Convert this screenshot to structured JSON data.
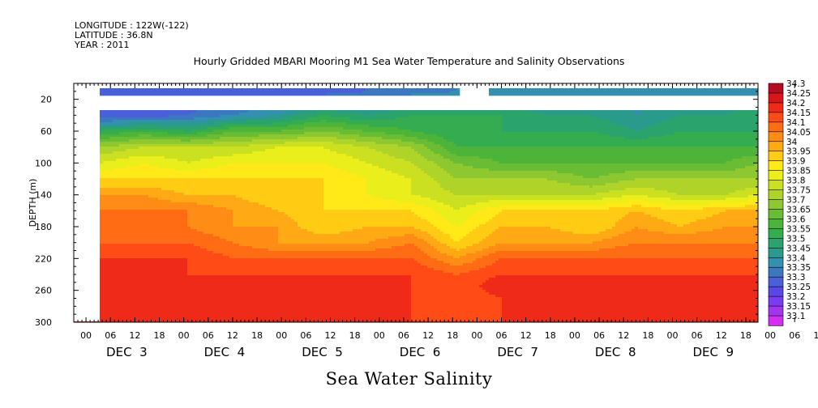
{
  "header": {
    "longitude": "LONGITUDE : 122W(-122)",
    "latitude": "LATITUDE : 36.8N",
    "year": "YEAR : 2011"
  },
  "title": "Hourly Gridded MBARI Mooring M1 Sea Water Temperature and Salinity Observations",
  "variable_name": "Sea Water Salinity",
  "chart_data": {
    "type": "heatmap",
    "title": "Hourly Gridded MBARI Mooring M1 Sea Water Temperature and Salinity Observations",
    "xlabel": "",
    "ylabel": "DEPTH (m)",
    "colorbar_label": "Sea Water Salinity",
    "y_axis": {
      "range": [
        300,
        0
      ],
      "inverted": true,
      "ticks": [
        20,
        60,
        100,
        140,
        180,
        220,
        260,
        300
      ]
    },
    "x_axis": {
      "start": "2011-12-02T21:00",
      "end": "2011-12-09T21:00",
      "hour_ticks": [
        "00",
        "06",
        "12",
        "18",
        "00",
        "06",
        "12",
        "18",
        "00",
        "06",
        "12",
        "18",
        "00",
        "06",
        "12",
        "18",
        "00",
        "06",
        "12",
        "18",
        "00",
        "06",
        "12",
        "18",
        "00",
        "06",
        "12",
        "18",
        "00",
        "06",
        "12",
        "18"
      ],
      "day_labels": [
        "DEC  3",
        "DEC  4",
        "DEC  5",
        "DEC  6",
        "DEC  7",
        "DEC  8",
        "DEC  9"
      ]
    },
    "colorbar": {
      "levels": [
        33.1,
        33.15,
        33.2,
        33.25,
        33.3,
        33.35,
        33.4,
        33.45,
        33.5,
        33.55,
        33.6,
        33.65,
        33.7,
        33.75,
        33.8,
        33.85,
        33.9,
        33.95,
        34,
        34.05,
        34.1,
        34.15,
        34.2,
        34.25,
        34.3
      ],
      "colors": [
        "#d22ff0",
        "#a236f0",
        "#7a3cf0",
        "#5848e8",
        "#4a60d8",
        "#3c78c0",
        "#3490b0",
        "#2a9a8c",
        "#2aa46c",
        "#36ac50",
        "#4cb438",
        "#6abc34",
        "#8ec830",
        "#aed42a",
        "#cce022",
        "#eaee1a",
        "#ffea18",
        "#ffcc14",
        "#ffaa14",
        "#ff8c14",
        "#ff6c14",
        "#ff4c16",
        "#f02a18",
        "#d8141c",
        "#b40c20"
      ]
    },
    "series": [
      {
        "depth": 10,
        "values": [
          33.3,
          33.3,
          33.3,
          33.3,
          33.3,
          33.32,
          33.35,
          33.38,
          33.4,
          33.4,
          33.4,
          33.42,
          33.42,
          33.42,
          33.42,
          33.42
        ]
      },
      {
        "depth": 40,
        "values": [
          33.3,
          33.32,
          33.35,
          33.4,
          33.45,
          33.55,
          33.5,
          33.55,
          33.55,
          33.55,
          33.5,
          33.5,
          33.45,
          33.5,
          33.5,
          33.55
        ]
      },
      {
        "depth": 60,
        "values": [
          33.55,
          33.6,
          33.55,
          33.65,
          33.65,
          33.7,
          33.65,
          33.6,
          33.55,
          33.55,
          33.55,
          33.55,
          33.5,
          33.55,
          33.55,
          33.55
        ]
      },
      {
        "depth": 80,
        "values": [
          33.75,
          33.8,
          33.8,
          33.8,
          33.85,
          33.85,
          33.8,
          33.75,
          33.6,
          33.6,
          33.6,
          33.6,
          33.6,
          33.6,
          33.6,
          33.6
        ]
      },
      {
        "depth": 100,
        "values": [
          33.85,
          33.9,
          33.85,
          33.9,
          33.9,
          33.9,
          33.85,
          33.8,
          33.7,
          33.65,
          33.65,
          33.65,
          33.65,
          33.65,
          33.65,
          33.7
        ]
      },
      {
        "depth": 120,
        "values": [
          33.95,
          33.95,
          33.95,
          33.95,
          33.95,
          33.95,
          33.9,
          33.85,
          33.75,
          33.75,
          33.75,
          33.7,
          33.75,
          33.75,
          33.75,
          33.75
        ]
      },
      {
        "depth": 140,
        "values": [
          34.05,
          34.05,
          34.0,
          34.0,
          33.95,
          33.95,
          33.9,
          33.85,
          33.8,
          33.8,
          33.8,
          33.8,
          33.85,
          33.8,
          33.8,
          33.85
        ]
      },
      {
        "depth": 160,
        "values": [
          34.1,
          34.1,
          34.1,
          34.05,
          34.0,
          33.95,
          33.95,
          33.95,
          33.85,
          33.95,
          33.95,
          33.95,
          34.0,
          33.95,
          34.0,
          34.0
        ]
      },
      {
        "depth": 180,
        "values": [
          34.1,
          34.1,
          34.1,
          34.05,
          34.05,
          33.95,
          34.0,
          34.0,
          33.9,
          34.0,
          34.0,
          33.95,
          34.05,
          34.0,
          34.05,
          34.05
        ]
      },
      {
        "depth": 200,
        "values": [
          34.15,
          34.15,
          34.15,
          34.1,
          34.05,
          34.05,
          34.05,
          34.1,
          33.95,
          34.05,
          34.05,
          34.05,
          34.1,
          34.1,
          34.1,
          34.1
        ]
      },
      {
        "depth": 220,
        "values": [
          34.2,
          34.2,
          34.2,
          34.15,
          34.15,
          34.15,
          34.15,
          34.15,
          34.05,
          34.15,
          34.15,
          34.15,
          34.15,
          34.15,
          34.15,
          34.15
        ]
      },
      {
        "depth": 240,
        "values": [
          34.2,
          34.2,
          34.2,
          34.2,
          34.2,
          34.2,
          34.2,
          34.2,
          34.15,
          34.2,
          34.2,
          34.2,
          34.2,
          34.2,
          34.2,
          34.2
        ]
      },
      {
        "depth": 255,
        "values": [
          34.25,
          34.25,
          34.25,
          34.25,
          34.25,
          34.25,
          34.2,
          34.2,
          34.15,
          34.25,
          34.25,
          34.25,
          34.25,
          34.25,
          34.25,
          34.25
        ]
      },
      {
        "depth": 270,
        "values": [
          34.2,
          34.2,
          34.2,
          34.2,
          34.2,
          34.2,
          34.2,
          34.2,
          34.15,
          34.2,
          34.2,
          34.2,
          34.2,
          34.2,
          34.2,
          34.2
        ]
      },
      {
        "depth": 300,
        "values": [
          34.2,
          34.2,
          34.2,
          34.2,
          34.2,
          34.2,
          34.2,
          34.2,
          34.2,
          34.2,
          34.2,
          34.2,
          34.2,
          34.2,
          34.2,
          34.2
        ]
      }
    ],
    "series_times": [
      "2011-12-03T03:00",
      "2011-12-03T14:00",
      "2011-12-04T01:00",
      "2011-12-04T12:00",
      "2011-12-04T23:00",
      "2011-12-05T10:00",
      "2011-12-05T21:00",
      "2011-12-06T08:00",
      "2011-12-06T19:00",
      "2011-12-07T06:00",
      "2011-12-07T17:00",
      "2011-12-08T04:00",
      "2011-12-08T15:00",
      "2011-12-09T02:00",
      "2011-12-09T13:00",
      "2011-12-09T21:00"
    ],
    "missing": [
      {
        "depth_range": [
          0,
          5
        ],
        "time_range": [
          "2011-12-02T21:00",
          "2011-12-09T21:00"
        ]
      },
      {
        "depth_range": [
          15,
          35
        ],
        "time_range": [
          "2011-12-02T21:00",
          "2011-12-09T21:00"
        ]
      },
      {
        "depth_range": [
          5,
          35
        ],
        "time_range": [
          "2011-12-02T21:00",
          "2011-12-03T03:00"
        ]
      },
      {
        "depth_range": [
          35,
          300
        ],
        "time_range": [
          "2011-12-02T21:00",
          "2011-12-03T03:00"
        ]
      },
      {
        "depth_range": [
          5,
          15
        ],
        "time_range": [
          "2011-12-06T20:00",
          "2011-12-07T03:00"
        ]
      }
    ],
    "grid": false,
    "legend": "colorbar-right"
  }
}
